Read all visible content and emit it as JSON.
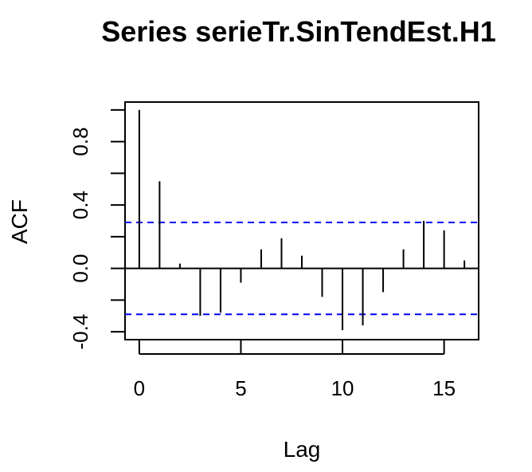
{
  "chart_data": {
    "type": "bar",
    "title": "Series  serieTr.SinTendEst.H1",
    "xlabel": "Lag",
    "ylabel": "ACF",
    "xlim": [
      -0.7,
      16.7
    ],
    "ylim": [
      -0.45,
      1.05
    ],
    "x_ticks": [
      "0",
      "5",
      "10",
      "15"
    ],
    "y_ticks": [
      "-0.4",
      "0.0",
      "0.4",
      "0.8"
    ],
    "lags": [
      0,
      1,
      2,
      3,
      4,
      5,
      6,
      7,
      8,
      9,
      10,
      11,
      12,
      13,
      14,
      15,
      16
    ],
    "acf": [
      1.0,
      0.55,
      0.03,
      -0.3,
      -0.28,
      -0.09,
      0.12,
      0.19,
      0.08,
      -0.18,
      -0.39,
      -0.36,
      -0.15,
      0.12,
      0.3,
      0.24,
      0.05
    ],
    "confidence_bound": 0.29,
    "confidence_color": "#0000ff",
    "grid": false
  }
}
